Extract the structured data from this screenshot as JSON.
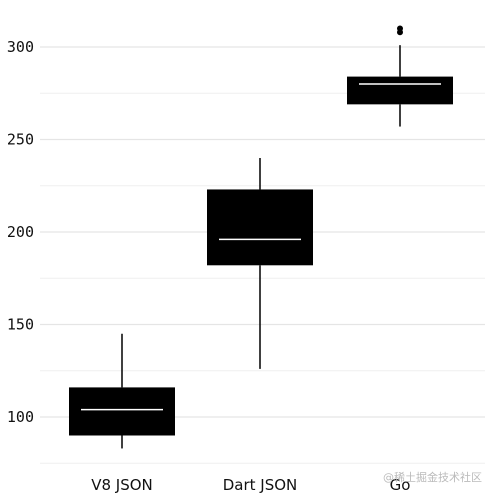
{
  "chart_data": {
    "type": "boxplot",
    "title": "",
    "xlabel": "",
    "ylabel": "",
    "ylim": [
      77,
      314
    ],
    "yticks": [
      100,
      150,
      200,
      250,
      300
    ],
    "grid": true,
    "categories": [
      "V8 JSON",
      "Dart JSON",
      "Go"
    ],
    "boxes": [
      {
        "category": "V8 JSON",
        "whisker_low": 83,
        "q1": 90,
        "median": 104,
        "q3": 116,
        "whisker_high": 145,
        "outliers": []
      },
      {
        "category": "Dart JSON",
        "whisker_low": 126,
        "q1": 182,
        "median": 196,
        "q3": 223,
        "whisker_high": 240,
        "outliers": []
      },
      {
        "category": "Go",
        "whisker_low": 257,
        "q1": 269,
        "median": 280,
        "q3": 284,
        "whisker_high": 301,
        "outliers": [
          308,
          310
        ]
      }
    ],
    "colors": {
      "box": "#000000",
      "median": "#ffffff",
      "grid": "#e5e5e5"
    }
  },
  "watermark": "@稀土掘金技术社区"
}
